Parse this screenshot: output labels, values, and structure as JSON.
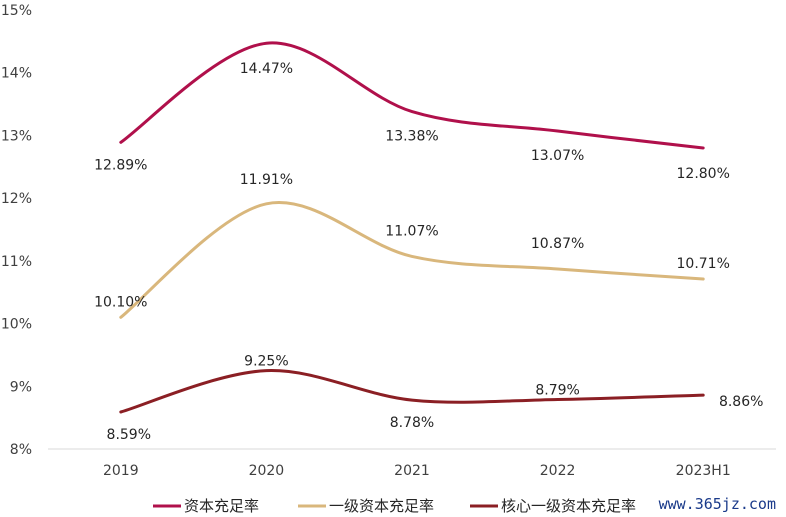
{
  "chart_data": {
    "type": "line",
    "categories": [
      "2019",
      "2020",
      "2021",
      "2022",
      "2023H1"
    ],
    "ylim": [
      8,
      15
    ],
    "yticks": [
      "8%",
      "9%",
      "10%",
      "11%",
      "12%",
      "13%",
      "14%",
      "15%"
    ],
    "grid": false,
    "legend_position": "bottom",
    "series": [
      {
        "name": "资本充足率",
        "color": "#b0104b",
        "values": [
          12.89,
          14.47,
          13.38,
          13.07,
          12.8
        ],
        "labels": [
          "12.89%",
          "14.47%",
          "13.38%",
          "13.07%",
          "12.80%"
        ]
      },
      {
        "name": "一级资本充足率",
        "color": "#d9b77c",
        "values": [
          10.1,
          11.91,
          11.07,
          10.87,
          10.71
        ],
        "labels": [
          "10.10%",
          "11.91%",
          "11.07%",
          "10.87%",
          "10.71%"
        ]
      },
      {
        "name": "核心一级资本充足率",
        "color": "#8b1f24",
        "values": [
          8.59,
          9.25,
          8.78,
          8.79,
          8.86
        ],
        "labels": [
          "8.59%",
          "9.25%",
          "8.78%",
          "8.79%",
          "8.86%"
        ]
      }
    ]
  },
  "watermark": "www.365jz.com"
}
